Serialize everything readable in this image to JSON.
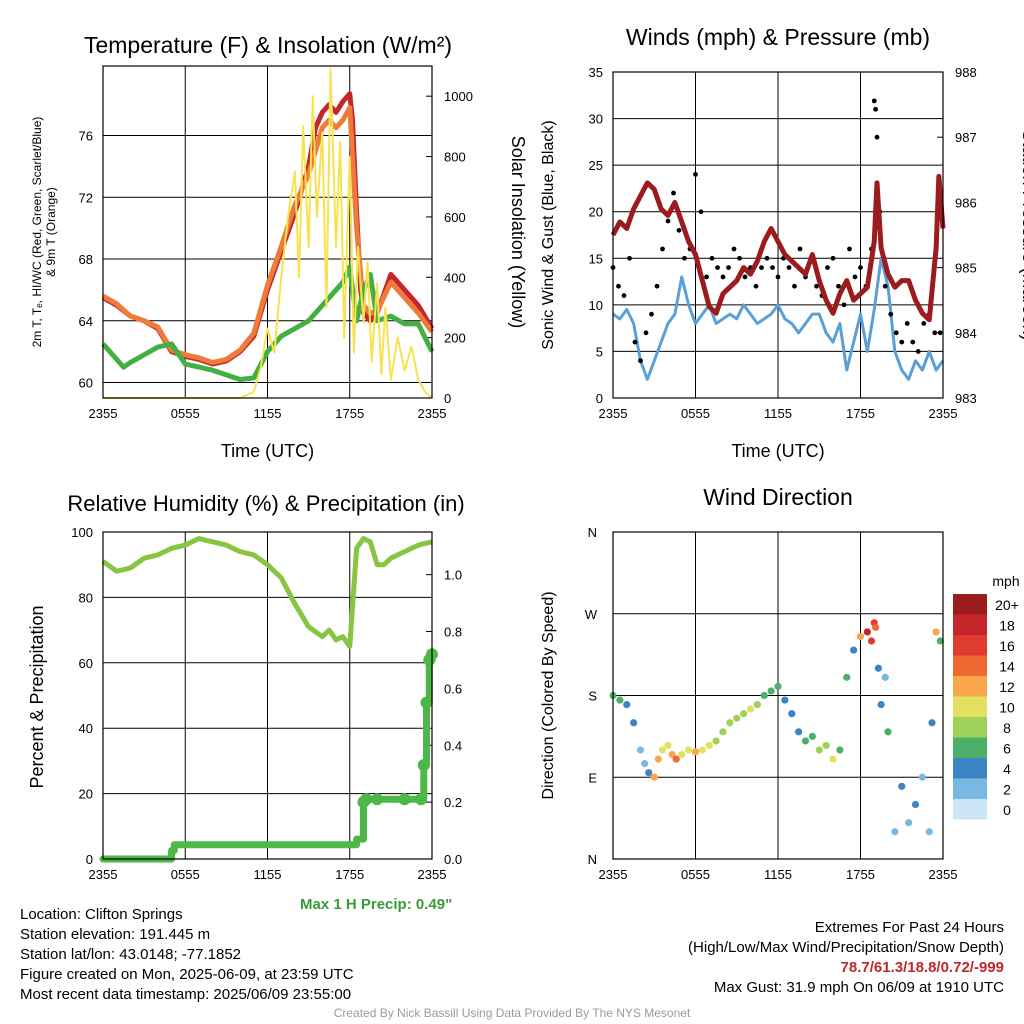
{
  "colors": {
    "red": "#c4262c",
    "orange": "#ef7a3a",
    "green": "#44b044",
    "yellow": "#f7e250",
    "blue": "#5aa0d8",
    "black": "#000000",
    "maroon": "#9b1c1f",
    "rh_green": "#88c542",
    "precip_green": "#4db848"
  },
  "footer": {
    "location": "Location: Clifton Springs",
    "elevation": "Station elevation: 191.445 m",
    "latlon": "Station lat/lon: 43.0148; -77.1852",
    "created": "Figure created on Mon, 2025-06-09, at 23:59 UTC",
    "recent": "Most recent data timestamp: 2025/06/09 23:55:00",
    "extremes_title": "Extremes For Past 24 Hours",
    "extremes_subtitle": "(High/Low/Max Wind/Precipitation/Snow Depth)",
    "extremes_values": "78.7/61.3/18.8/0.72/-999",
    "max_gust": "Max Gust: 31.9 mph On 06/09 at 1910 UTC",
    "credit": "Created By Nick Bassill Using Data Provided By The NYS Mesonet",
    "max_precip": "Max 1 H Precip: 0.49\""
  },
  "chart_data": [
    {
      "id": "temperature",
      "type": "line",
      "title": "Temperature (F) & Insolation (W/m²)",
      "xlabel": "Time (UTC)",
      "ylabel": [
        "2m T, Tₑ, HI/WC (Red, Green, Scarlet/Blue)",
        "& 9m T (Orange)"
      ],
      "y2label": "Solar Insolation (Yellow)",
      "x_ticks": [
        "2355",
        "0555",
        "1155",
        "1755",
        "2355"
      ],
      "xlim": [
        0,
        24
      ],
      "ylim": [
        59,
        80.5
      ],
      "y_ticks": [
        60,
        64,
        68,
        72,
        76
      ],
      "y2lim": [
        0,
        1100
      ],
      "y2_ticks": [
        0,
        200,
        400,
        600,
        800,
        1000
      ],
      "series": [
        {
          "key": "t2m",
          "color_key": "red",
          "axis": "left",
          "x": [
            0,
            1,
            2,
            3,
            4,
            5,
            6,
            7,
            8,
            9,
            10,
            11,
            12,
            13,
            14,
            14.5,
            15,
            15.5,
            16,
            16.5,
            17,
            17.5,
            18,
            18.2,
            18.5,
            18.8,
            19,
            19.5,
            20,
            21,
            22,
            23,
            24
          ],
          "y": [
            65.5,
            65,
            64.3,
            64,
            63.5,
            62,
            61.7,
            61.5,
            61.2,
            61.4,
            62,
            63,
            66,
            68.5,
            71,
            72.5,
            74,
            76.5,
            77.5,
            78,
            77.5,
            78.2,
            78.7,
            77,
            71,
            66,
            64.5,
            64,
            64.5,
            67,
            66,
            65,
            63.5
          ]
        },
        {
          "key": "t9m",
          "color_key": "orange",
          "axis": "left",
          "x": [
            0,
            1,
            2,
            3,
            4,
            5,
            6,
            7,
            8,
            9,
            10,
            11,
            12,
            13,
            14,
            14.5,
            15,
            15.5,
            16,
            16.5,
            17,
            17.5,
            18,
            18.5,
            19,
            19.5,
            20,
            21,
            22,
            23,
            24
          ],
          "y": [
            65.6,
            65.1,
            64.3,
            64,
            63.6,
            62.1,
            61.8,
            61.6,
            61.3,
            61.5,
            62.1,
            63.2,
            66.3,
            68.8,
            71.5,
            72.5,
            73.5,
            75,
            76.5,
            77,
            76.5,
            77,
            77.8,
            70,
            65,
            64.5,
            64.6,
            66.5,
            65.5,
            64.5,
            63.3
          ]
        },
        {
          "key": "td",
          "color_key": "green",
          "axis": "left",
          "x": [
            0,
            0.7,
            1.5,
            2,
            3,
            4,
            5,
            6,
            7,
            8,
            9,
            10,
            11,
            12,
            13,
            14,
            15,
            16,
            16.5,
            17,
            17.5,
            18,
            18.5,
            19,
            19.5,
            20,
            21,
            22,
            23,
            24
          ],
          "y": [
            62.5,
            61.8,
            61,
            61.3,
            61.8,
            62.3,
            62.5,
            61.2,
            61,
            60.8,
            60.5,
            60.2,
            60.3,
            62,
            63,
            63.5,
            64,
            65,
            65.5,
            66,
            66.5,
            67.5,
            64,
            66,
            67,
            64,
            64.3,
            63.8,
            63.8,
            62
          ]
        },
        {
          "key": "solar",
          "color_key": "yellow",
          "axis": "right",
          "x": [
            0,
            1,
            2,
            3,
            4,
            5,
            6,
            7,
            8,
            9,
            10,
            11,
            11.5,
            12,
            12.5,
            13,
            13.5,
            14,
            14.3,
            14.6,
            15,
            15.3,
            15.6,
            16,
            16.3,
            16.6,
            17,
            17.3,
            17.6,
            18,
            18.3,
            18.6,
            19,
            19.3,
            19.6,
            20,
            20.3,
            20.6,
            21,
            21.5,
            22,
            22.5,
            23,
            23.5,
            24
          ],
          "y": [
            0,
            0,
            0,
            0,
            0,
            0,
            0,
            0,
            0,
            0,
            0,
            20,
            100,
            230,
            150,
            400,
            600,
            750,
            400,
            900,
            500,
            1000,
            600,
            880,
            300,
            1090,
            500,
            850,
            200,
            800,
            150,
            500,
            250,
            450,
            120,
            380,
            80,
            300,
            60,
            200,
            90,
            170,
            60,
            20,
            0
          ]
        }
      ]
    },
    {
      "id": "winds",
      "type": "line",
      "title": "Winds (mph) & Pressure (mb)",
      "xlabel": "Time (UTC)",
      "ylabel": "Sonic Wind & Gust (Blue, Black)",
      "y2label": "Station Pressure (Maroon)",
      "x_ticks": [
        "2355",
        "0555",
        "1155",
        "1755",
        "2355"
      ],
      "xlim": [
        0,
        24
      ],
      "ylim": [
        0,
        35
      ],
      "y_ticks": [
        0,
        5,
        10,
        15,
        20,
        25,
        30,
        35
      ],
      "y2lim": [
        983,
        988
      ],
      "y2_ticks": [
        983,
        984,
        985,
        986,
        987,
        988
      ],
      "series": [
        {
          "key": "wind",
          "color_key": "blue",
          "axis": "left",
          "x": [
            0,
            0.5,
            1,
            1.5,
            2,
            2.5,
            3,
            3.5,
            4,
            4.5,
            5,
            5.5,
            6,
            6.5,
            7,
            7.5,
            8,
            8.5,
            9,
            9.5,
            10,
            10.5,
            11,
            11.5,
            12,
            12.5,
            13,
            13.5,
            14,
            14.5,
            15,
            15.5,
            16,
            16.5,
            17,
            17.5,
            18,
            18.5,
            19,
            19.5,
            20,
            20.5,
            21,
            21.5,
            22,
            22.5,
            23,
            23.5,
            24
          ],
          "y": [
            9,
            8.5,
            9.5,
            8,
            4,
            2,
            4,
            6,
            8,
            9,
            13,
            10,
            8,
            9,
            10,
            8,
            8.5,
            9,
            8.5,
            10,
            9,
            8,
            8.5,
            9,
            10,
            8.5,
            8,
            7,
            8,
            9,
            9,
            7,
            6,
            8,
            3,
            6,
            9,
            5,
            9.5,
            15,
            12,
            5,
            3,
            2,
            4,
            3,
            5,
            3,
            4
          ]
        },
        {
          "key": "gust",
          "color_key": "black",
          "axis": "left",
          "style": "points",
          "x": [
            0,
            0.4,
            0.8,
            1.2,
            1.6,
            2,
            2.4,
            2.8,
            3.2,
            3.6,
            4,
            4.4,
            4.8,
            5.2,
            5.6,
            6,
            6.4,
            6.8,
            7.2,
            7.6,
            8,
            8.4,
            8.8,
            9.2,
            9.6,
            10,
            10.4,
            10.8,
            11.2,
            11.6,
            12,
            12.4,
            12.8,
            13.2,
            13.6,
            14,
            14.4,
            14.8,
            15.2,
            15.6,
            16,
            16.4,
            16.8,
            17.2,
            17.6,
            18,
            18.4,
            18.8,
            19,
            19.1,
            19.2,
            19.4,
            19.8,
            20.2,
            20.6,
            21,
            21.4,
            21.8,
            22.2,
            22.6,
            23,
            23.4,
            23.8
          ],
          "y": [
            14,
            12,
            11,
            15,
            6,
            4,
            7,
            9,
            12,
            16,
            19,
            22,
            18,
            15,
            16,
            24,
            20,
            13,
            15,
            14,
            13,
            14,
            16,
            15,
            13,
            14,
            12,
            14,
            15,
            14,
            13,
            15,
            14,
            12,
            16,
            13,
            15,
            12,
            11,
            14,
            15,
            12,
            10,
            16,
            13,
            14,
            12,
            16,
            31.9,
            31,
            28,
            20,
            12,
            9,
            7,
            6,
            8,
            6,
            5,
            8,
            9,
            7,
            7
          ]
        },
        {
          "key": "pressure",
          "color_key": "maroon",
          "axis": "right",
          "x": [
            0,
            0.5,
            1,
            1.5,
            2,
            2.5,
            3,
            3.5,
            4,
            4.5,
            5,
            5.5,
            6,
            6.5,
            7,
            7.5,
            8,
            8.5,
            9,
            9.5,
            10,
            10.5,
            11,
            11.5,
            12,
            12.5,
            13,
            13.5,
            14,
            14.5,
            15,
            15.5,
            16,
            16.5,
            17,
            17.5,
            18,
            18.5,
            19,
            19.2,
            19.5,
            20,
            20.5,
            21,
            21.5,
            22,
            22.5,
            23,
            23.5,
            23.7,
            24
          ],
          "y": [
            985.5,
            985.7,
            985.6,
            985.9,
            986.1,
            986.3,
            986.2,
            985.9,
            985.8,
            986.0,
            985.7,
            985.4,
            985.2,
            984.8,
            984.4,
            984.3,
            984.6,
            984.7,
            984.8,
            985.0,
            984.9,
            985.1,
            985.4,
            985.6,
            985.4,
            985.2,
            985.1,
            985.0,
            984.9,
            985.2,
            984.8,
            984.5,
            984.3,
            984.6,
            984.8,
            984.5,
            984.6,
            984.7,
            985.4,
            986.3,
            985.3,
            984.9,
            984.7,
            984.8,
            984.8,
            984.5,
            984.3,
            984.2,
            985.3,
            986.4,
            985.6
          ]
        }
      ]
    },
    {
      "id": "humidity",
      "type": "line",
      "title": "Relative Humidity (%) & Precipitation (in)",
      "xlabel": "",
      "ylabel": "Percent & Precipitation",
      "x_ticks": [
        "2355",
        "0555",
        "1155",
        "1755",
        "2355"
      ],
      "xlim": [
        0,
        24
      ],
      "ylim": [
        0,
        100
      ],
      "y_ticks": [
        0,
        20,
        40,
        60,
        80,
        100
      ],
      "y2lim": [
        0,
        1.15
      ],
      "y2_ticks": [
        "0.0",
        "0.2",
        "0.4",
        "0.6",
        "0.8",
        "1.0"
      ],
      "series": [
        {
          "key": "rh",
          "color_key": "rh_green",
          "axis": "left",
          "x": [
            0,
            1,
            2,
            3,
            4,
            5,
            6,
            7,
            8,
            9,
            10,
            11,
            12,
            13,
            14,
            15,
            16,
            16.5,
            17,
            17.5,
            18,
            18.5,
            19,
            19.5,
            20,
            20.5,
            21,
            21.5,
            22,
            23,
            24
          ],
          "y": [
            91,
            88,
            89,
            92,
            93,
            95,
            96,
            98,
            97,
            96,
            94,
            93,
            90,
            86,
            78,
            71,
            68,
            70,
            67,
            68,
            65,
            95,
            98,
            97,
            90,
            90,
            92,
            93,
            94,
            96,
            97
          ]
        },
        {
          "key": "precip",
          "color_key": "precip_green",
          "axis": "right",
          "style": "steps",
          "x": [
            0,
            4.6,
            5,
            5.2,
            6,
            10,
            15,
            18,
            18.5,
            19,
            19.2,
            20,
            22,
            23.2,
            23.4,
            23.6,
            23.8,
            24
          ],
          "y": [
            0,
            0,
            0.03,
            0.05,
            0.05,
            0.05,
            0.05,
            0.05,
            0.07,
            0.2,
            0.21,
            0.21,
            0.21,
            0.21,
            0.33,
            0.55,
            0.7,
            0.72
          ]
        }
      ]
    },
    {
      "id": "direction",
      "type": "scatter",
      "title": "Wind Direction",
      "xlabel": "",
      "ylabel": "Direction (Colored By Speed)",
      "x_ticks": [
        "2355",
        "0555",
        "1155",
        "1755",
        "2355"
      ],
      "xlim": [
        0,
        24
      ],
      "y_ticks": [
        "N",
        "E",
        "S",
        "W",
        "N"
      ],
      "ylim": [
        0,
        360
      ],
      "legend_title": "mph",
      "legend": [
        "20+",
        "18",
        "16",
        "14",
        "12",
        "10",
        "8",
        "6",
        "4",
        "2",
        "0"
      ],
      "legend_colors": [
        "#9b1c1f",
        "#c4262c",
        "#e03b2f",
        "#ef6a32",
        "#f9a64a",
        "#e4e060",
        "#9fd05a",
        "#4db06a",
        "#3c84c4",
        "#7ab8e4",
        "#cce6f6"
      ],
      "points_x": [
        0,
        0.5,
        1,
        1.5,
        2,
        2.3,
        2.6,
        3,
        3.3,
        3.6,
        4,
        4.3,
        4.6,
        5,
        5.5,
        6,
        6.5,
        7,
        7.5,
        8,
        8.5,
        9,
        9.5,
        10,
        10.5,
        11,
        11.5,
        12,
        12.5,
        13,
        13.5,
        14,
        14.5,
        15,
        15.5,
        16,
        16.5,
        17,
        17.5,
        18,
        18.5,
        18.8,
        19,
        19.1,
        19.3,
        19.5,
        19.8,
        20,
        20.5,
        21,
        21.5,
        22,
        22.5,
        23,
        23.2,
        23.5,
        23.8
      ],
      "points_y": [
        180,
        175,
        170,
        150,
        120,
        105,
        95,
        90,
        110,
        120,
        125,
        115,
        110,
        115,
        120,
        118,
        120,
        125,
        130,
        140,
        150,
        155,
        160,
        165,
        170,
        180,
        185,
        190,
        175,
        160,
        140,
        130,
        135,
        120,
        125,
        110,
        120,
        200,
        230,
        245,
        250,
        240,
        260,
        255,
        210,
        170,
        200,
        140,
        30,
        80,
        40,
        60,
        90,
        30,
        150,
        250,
        240
      ],
      "points_speed": [
        6,
        7,
        4,
        4,
        3,
        2,
        5,
        12,
        13,
        10,
        11,
        12,
        14,
        11,
        10,
        12,
        11,
        10,
        9,
        8,
        9,
        8,
        8,
        10,
        8,
        6,
        6,
        7,
        5,
        5,
        4,
        6,
        7,
        9,
        8,
        10,
        7,
        6,
        5,
        12,
        18,
        16,
        17,
        14,
        4,
        5,
        3,
        6,
        2,
        4,
        3,
        5,
        2,
        3,
        5,
        12,
        7
      ]
    }
  ]
}
